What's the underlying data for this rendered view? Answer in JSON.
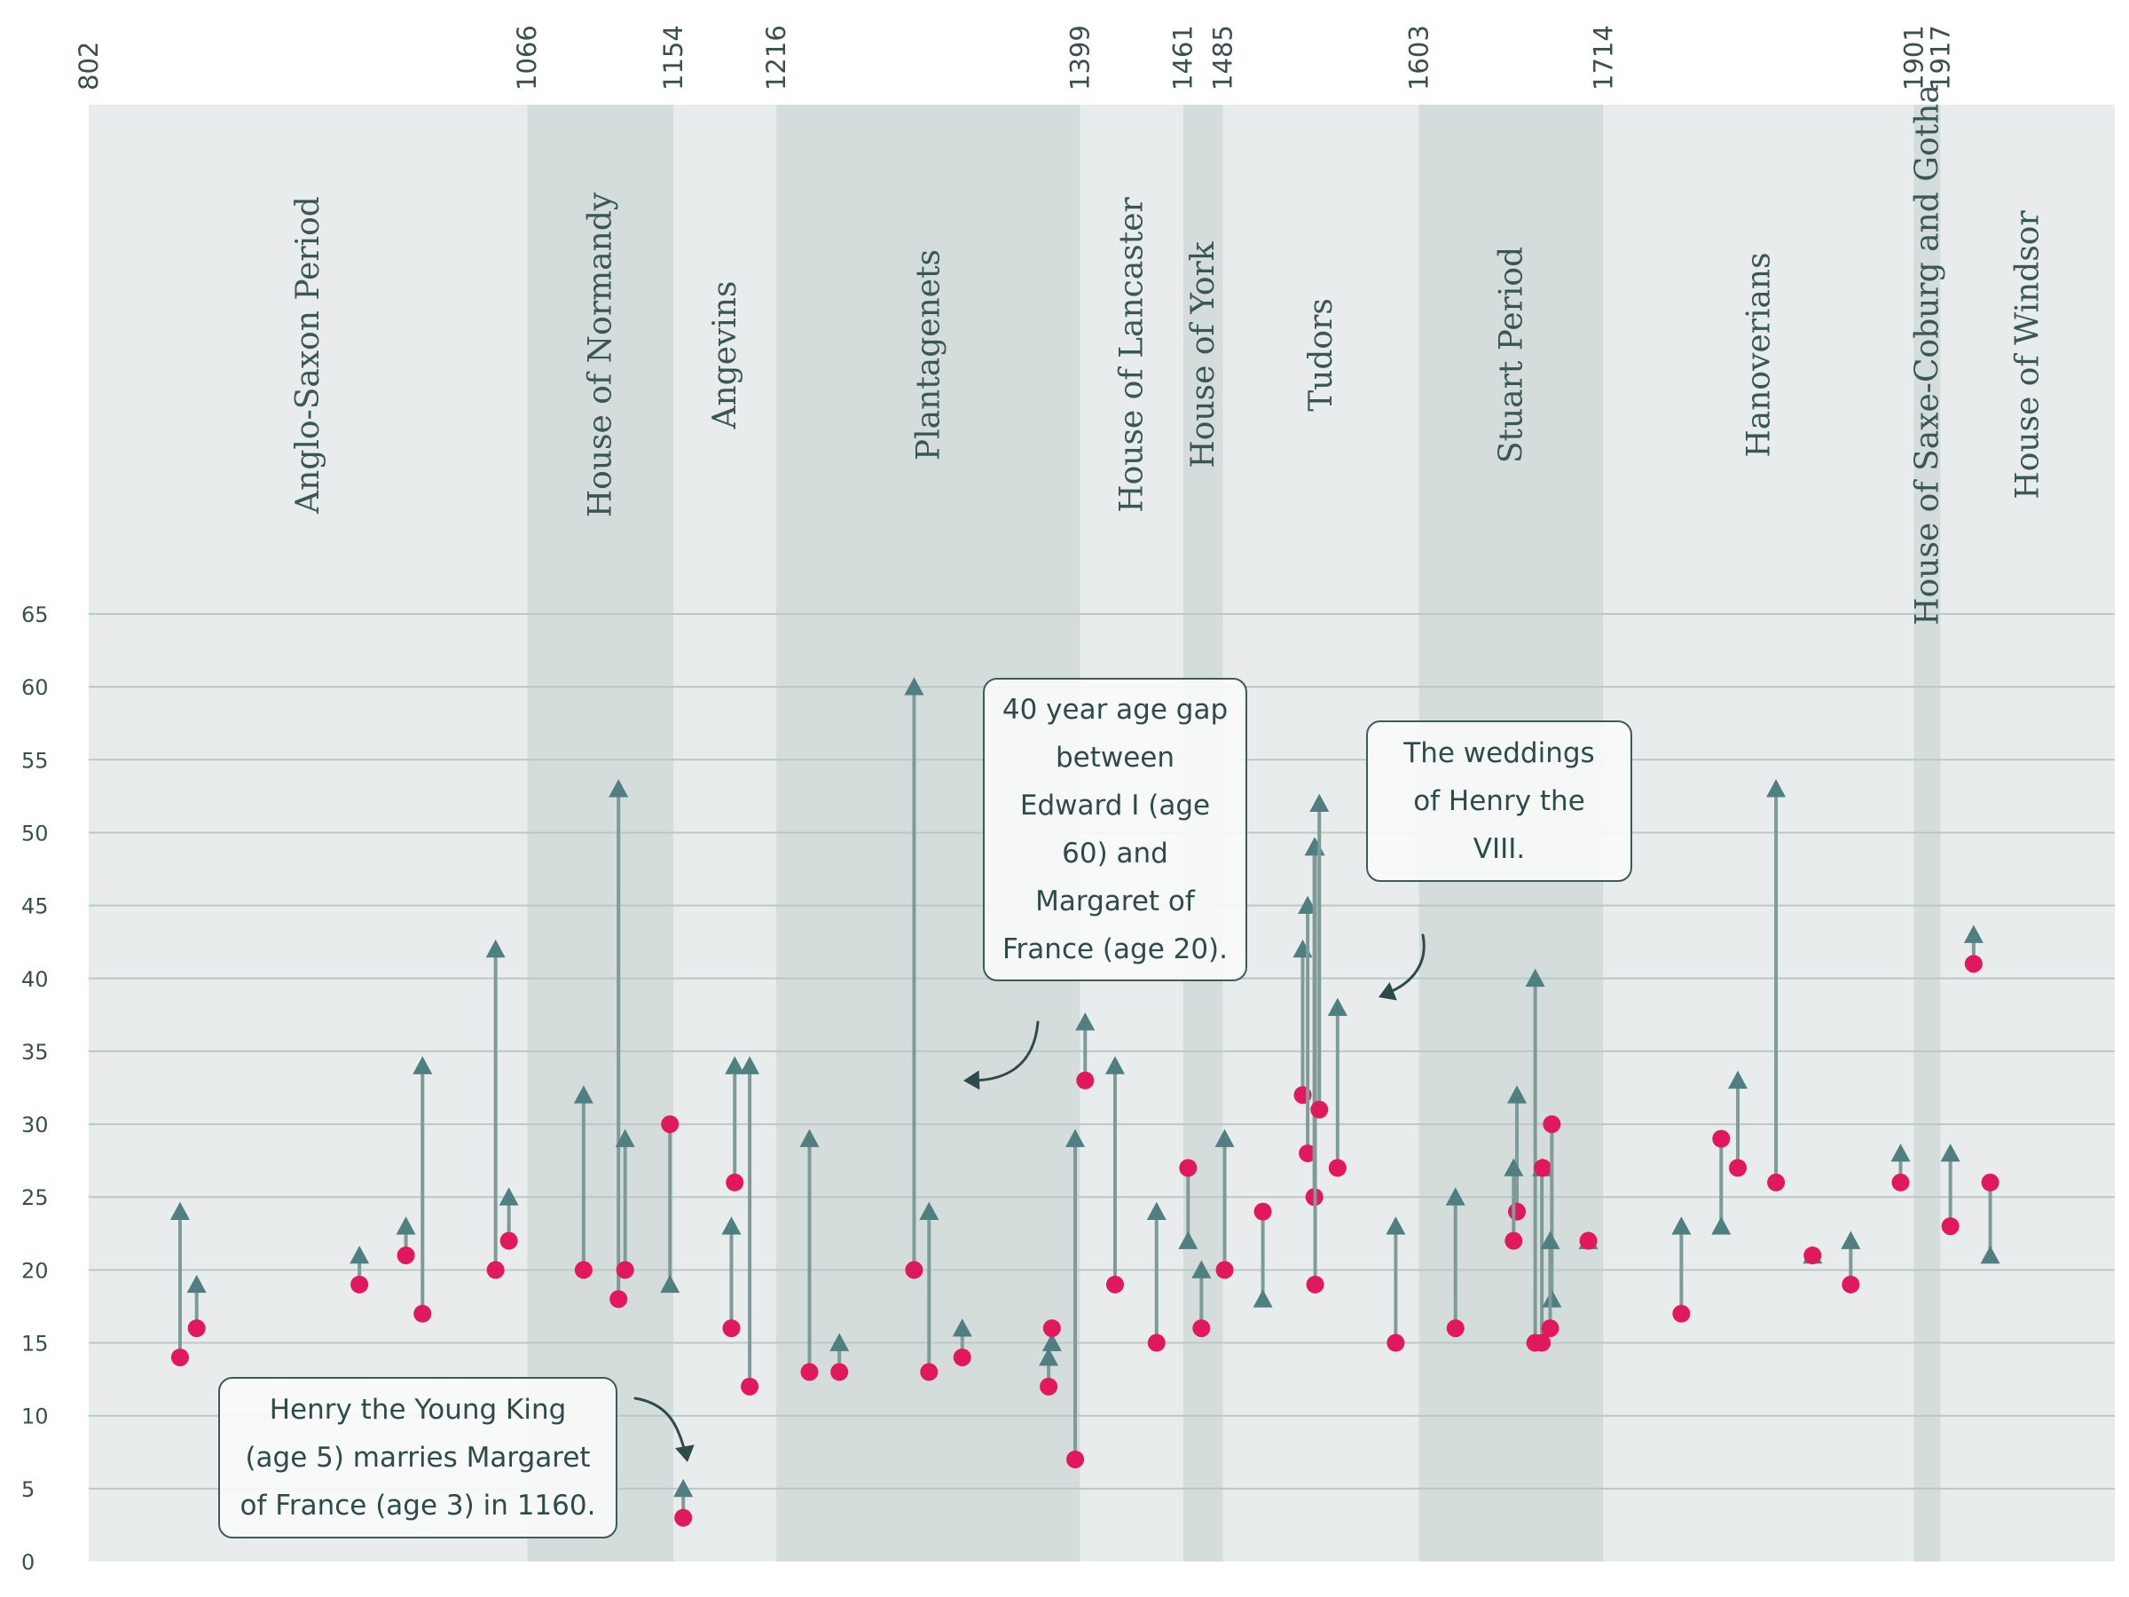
{
  "colors": {
    "background": "#ffffff",
    "band_light": "#e8ecec",
    "band_dark": "#d4dddc",
    "gridline": "#bcc8c8",
    "husband_marker": "#4f7f80",
    "wife_marker": "#e1185b",
    "connector": "#7e9a99",
    "text": "#3a4f4f",
    "arrow": "#2f4a4a"
  },
  "chart_data": {
    "type": "scatter",
    "title": "",
    "xlabel": "",
    "ylabel": "",
    "xlim": [
      802,
      2022
    ],
    "ylim": [
      0,
      65
    ],
    "y_ticks": [
      0,
      5,
      10,
      15,
      20,
      25,
      30,
      35,
      40,
      45,
      50,
      55,
      60,
      65
    ],
    "grid": true,
    "x_tick_years": [
      802,
      1066,
      1154,
      1216,
      1399,
      1461,
      1485,
      1603,
      1714,
      1901,
      1917
    ],
    "eras": [
      {
        "name": "Anglo-Saxon Period",
        "start": 802,
        "end": 1066,
        "shade": "light"
      },
      {
        "name": "House of Normandy",
        "start": 1066,
        "end": 1154,
        "shade": "dark"
      },
      {
        "name": "Angevins",
        "start": 1154,
        "end": 1216,
        "shade": "light"
      },
      {
        "name": "Plantagenets",
        "start": 1216,
        "end": 1399,
        "shade": "dark"
      },
      {
        "name": "House of Lancaster",
        "start": 1399,
        "end": 1461,
        "shade": "light"
      },
      {
        "name": "House of York",
        "start": 1461,
        "end": 1485,
        "shade": "dark"
      },
      {
        "name": "Tudors",
        "start": 1485,
        "end": 1603,
        "shade": "light"
      },
      {
        "name": "Stuart Period",
        "start": 1603,
        "end": 1714,
        "shade": "dark"
      },
      {
        "name": "Hanoverians",
        "start": 1714,
        "end": 1901,
        "shade": "light"
      },
      {
        "name": "House of Saxe-Coburg and Gotha",
        "start": 1901,
        "end": 1917,
        "shade": "dark"
      },
      {
        "name": "House of Windsor",
        "start": 1917,
        "end": 2022,
        "shade": "light"
      }
    ],
    "series": [
      {
        "marker": "triangle",
        "color": "#4f7f80"
      },
      {
        "marker": "circle",
        "color": "#e1185b"
      }
    ],
    "marriages": [
      {
        "year": 857,
        "husband_age": 24,
        "wife_age": 14
      },
      {
        "year": 867,
        "husband_age": 19,
        "wife_age": 16
      },
      {
        "year": 965,
        "husband_age": 21,
        "wife_age": 19
      },
      {
        "year": 993,
        "husband_age": 23,
        "wife_age": 21
      },
      {
        "year": 1003,
        "husband_age": 34,
        "wife_age": 17
      },
      {
        "year": 1047,
        "husband_age": 42,
        "wife_age": 20
      },
      {
        "year": 1055,
        "husband_age": 25,
        "wife_age": 22
      },
      {
        "year": 1100,
        "husband_age": 32,
        "wife_age": 20
      },
      {
        "year": 1121,
        "husband_age": 53,
        "wife_age": 18
      },
      {
        "year": 1125,
        "husband_age": 29,
        "wife_age": 20
      },
      {
        "year": 1152,
        "husband_age": 19,
        "wife_age": 30
      },
      {
        "year": 1160,
        "husband_age": 5,
        "wife_age": 3
      },
      {
        "year": 1191,
        "husband_age": 34,
        "wife_age": 26
      },
      {
        "year": 1189,
        "husband_age": 23,
        "wife_age": 16
      },
      {
        "year": 1200,
        "husband_age": 34,
        "wife_age": 12
      },
      {
        "year": 1236,
        "husband_age": 29,
        "wife_age": 13
      },
      {
        "year": 1254,
        "husband_age": 15,
        "wife_age": 13
      },
      {
        "year": 1299,
        "husband_age": 60,
        "wife_age": 20
      },
      {
        "year": 1308,
        "husband_age": 24,
        "wife_age": 13
      },
      {
        "year": 1328,
        "husband_age": 16,
        "wife_age": 14
      },
      {
        "year": 1380,
        "husband_age": 14,
        "wife_age": 12
      },
      {
        "year": 1382,
        "husband_age": 15,
        "wife_age": 16
      },
      {
        "year": 1396,
        "husband_age": 29,
        "wife_age": 7
      },
      {
        "year": 1402,
        "husband_age": 37,
        "wife_age": 33
      },
      {
        "year": 1420,
        "husband_age": 34,
        "wife_age": 19
      },
      {
        "year": 1445,
        "husband_age": 24,
        "wife_age": 15
      },
      {
        "year": 1464,
        "husband_age": 22,
        "wife_age": 27
      },
      {
        "year": 1472,
        "husband_age": 20,
        "wife_age": 16
      },
      {
        "year": 1486,
        "husband_age": 29,
        "wife_age": 20
      },
      {
        "year": 1509,
        "husband_age": 18,
        "wife_age": 24
      },
      {
        "year": 1533,
        "husband_age": 42,
        "wife_age": 32
      },
      {
        "year": 1536,
        "husband_age": 45,
        "wife_age": 28
      },
      {
        "year": 1540,
        "husband_age": 49,
        "wife_age": 25
      },
      {
        "year": 1540.5,
        "husband_age": 49,
        "wife_age": 19
      },
      {
        "year": 1543,
        "husband_age": 52,
        "wife_age": 31
      },
      {
        "year": 1554,
        "husband_age": 38,
        "wife_age": 27
      },
      {
        "year": 1589,
        "husband_age": 23,
        "wife_age": 15
      },
      {
        "year": 1625,
        "husband_age": 25,
        "wife_age": 16
      },
      {
        "year": 1662,
        "husband_age": 32,
        "wife_age": 24
      },
      {
        "year": 1660,
        "husband_age": 27,
        "wife_age": 22
      },
      {
        "year": 1673,
        "husband_age": 40,
        "wife_age": 15
      },
      {
        "year": 1677,
        "husband_age": 27,
        "wife_age": 15
      },
      {
        "year": 1677.5,
        "husband_age": 27,
        "wife_age": 27
      },
      {
        "year": 1683,
        "husband_age": 18,
        "wife_age": 30
      },
      {
        "year": 1682,
        "husband_age": 22,
        "wife_age": 16
      },
      {
        "year": 1705,
        "husband_age": 22,
        "wife_age": 22
      },
      {
        "year": 1761,
        "husband_age": 23,
        "wife_age": 17
      },
      {
        "year": 1785,
        "husband_age": 23,
        "wife_age": 29
      },
      {
        "year": 1795,
        "husband_age": 33,
        "wife_age": 27
      },
      {
        "year": 1818,
        "husband_age": 53,
        "wife_age": 26
      },
      {
        "year": 1840,
        "husband_age": 21,
        "wife_age": 21
      },
      {
        "year": 1863,
        "husband_age": 22,
        "wife_age": 19
      },
      {
        "year": 1893,
        "husband_age": 28,
        "wife_age": 26
      },
      {
        "year": 1923,
        "husband_age": 28,
        "wife_age": 23
      },
      {
        "year": 1937,
        "husband_age": 43,
        "wife_age": 41
      },
      {
        "year": 1947,
        "husband_age": 21,
        "wife_age": 26
      }
    ],
    "annotations": [
      {
        "text": "Henry the Young King (age 5) marries Margaret of France (age 3) in 1160."
      },
      {
        "text": "40 year age gap between Edward I (age 60) and Margaret of France (age 20)."
      },
      {
        "text": "The weddings of Henry the VIII."
      }
    ]
  },
  "annotations_display": {
    "henry_young_king": {
      "lines": [
        "Henry the Young King",
        "(age 5) marries Margaret",
        "of France (age 3) in 1160."
      ]
    },
    "edward_gap": {
      "lines": [
        "40 year age gap",
        "between",
        "Edward I (age",
        "60) and",
        "Margaret of",
        "France (age 20)."
      ]
    },
    "henry_viii": {
      "lines": [
        "The weddings",
        "of Henry the",
        "VIII."
      ]
    }
  }
}
